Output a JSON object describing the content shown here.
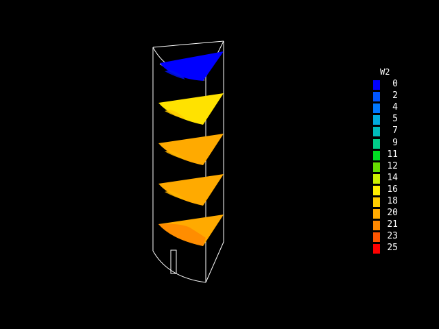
{
  "legend": {
    "title": "W2",
    "entries": [
      {
        "label": "0",
        "color": "#0000ff"
      },
      {
        "label": "2",
        "color": "#0055ff"
      },
      {
        "label": "4",
        "color": "#0077ff"
      },
      {
        "label": "5",
        "color": "#00aadd"
      },
      {
        "label": "7",
        "color": "#00bbbb"
      },
      {
        "label": "9",
        "color": "#00cc88"
      },
      {
        "label": "11",
        "color": "#00dd22"
      },
      {
        "label": "12",
        "color": "#66dd00"
      },
      {
        "label": "14",
        "color": "#ccee00"
      },
      {
        "label": "16",
        "color": "#ffee00"
      },
      {
        "label": "18",
        "color": "#ffcc00"
      },
      {
        "label": "20",
        "color": "#ffaa00"
      },
      {
        "label": "21",
        "color": "#ff8800"
      },
      {
        "label": "23",
        "color": "#ff5500"
      },
      {
        "label": "25",
        "color": "#ff0000"
      }
    ]
  },
  "slices": [
    {
      "level": "top",
      "base_color": "#0000ff",
      "accent_color": "#0011ee"
    },
    {
      "level": "upper",
      "base_color": "#ffe200",
      "accent_color": "#ffcc00"
    },
    {
      "level": "middle",
      "base_color": "#ffaa00",
      "accent_color": "#ffb400"
    },
    {
      "level": "lower",
      "base_color": "#ffaa00",
      "accent_color": "#ffb400"
    },
    {
      "level": "bottom",
      "base_color": "#ffaa00",
      "accent_color": "#ff8800"
    }
  ],
  "outline_color": "#ffffff"
}
